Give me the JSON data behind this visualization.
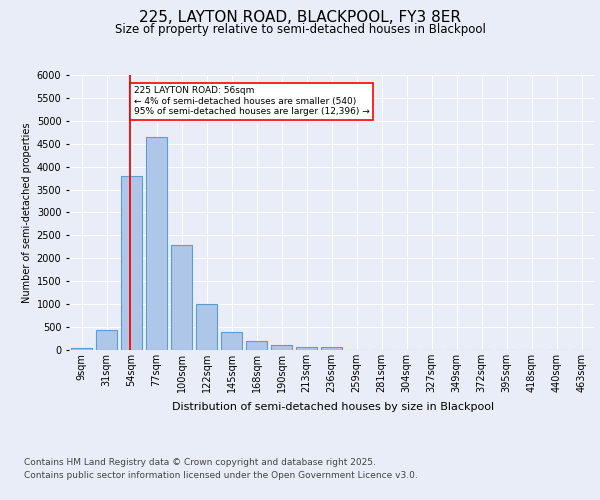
{
  "title1": "225, LAYTON ROAD, BLACKPOOL, FY3 8ER",
  "title2": "Size of property relative to semi-detached houses in Blackpool",
  "xlabel": "Distribution of semi-detached houses by size in Blackpool",
  "ylabel": "Number of semi-detached properties",
  "bin_labels": [
    "9sqm",
    "31sqm",
    "54sqm",
    "77sqm",
    "100sqm",
    "122sqm",
    "145sqm",
    "168sqm",
    "190sqm",
    "213sqm",
    "236sqm",
    "259sqm",
    "281sqm",
    "304sqm",
    "327sqm",
    "349sqm",
    "372sqm",
    "395sqm",
    "418sqm",
    "440sqm",
    "463sqm"
  ],
  "bar_values": [
    50,
    430,
    3800,
    4650,
    2300,
    1000,
    400,
    200,
    100,
    75,
    75,
    0,
    0,
    0,
    0,
    0,
    0,
    0,
    0,
    0,
    0
  ],
  "bar_color": "#aec6e8",
  "bar_edge_color": "#5a9fd4",
  "bar_edge_width": 0.8,
  "annotation_line1": "225 LAYTON ROAD: 56sqm",
  "annotation_line2": "← 4% of semi-detached houses are smaller (540)",
  "annotation_line3": "95% of semi-detached houses are larger (12,396) →",
  "ylim": [
    0,
    6000
  ],
  "yticks": [
    0,
    500,
    1000,
    1500,
    2000,
    2500,
    3000,
    3500,
    4000,
    4500,
    5000,
    5500,
    6000
  ],
  "background_color": "#e8edf8",
  "plot_bg_color": "#e8edf8",
  "grid_color": "#ffffff",
  "footer1": "Contains HM Land Registry data © Crown copyright and database right 2025.",
  "footer2": "Contains public sector information licensed under the Open Government Licence v3.0.",
  "title1_fontsize": 11,
  "title2_fontsize": 8.5,
  "xlabel_fontsize": 8,
  "ylabel_fontsize": 7,
  "tick_fontsize": 7,
  "footer_fontsize": 6.5
}
